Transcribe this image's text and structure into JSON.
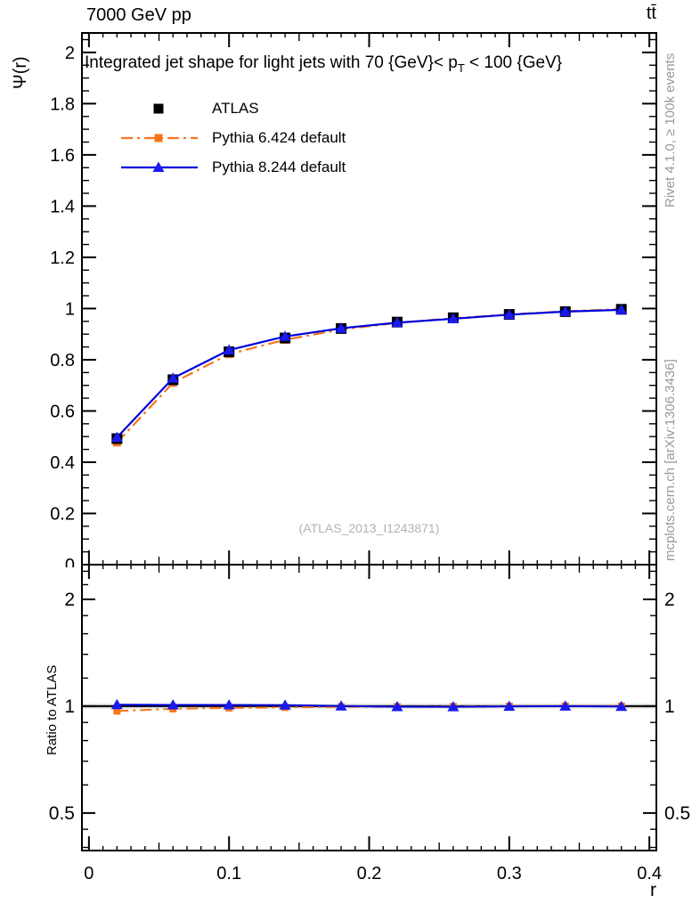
{
  "header": {
    "left": "7000 GeV pp",
    "right": "tt̄"
  },
  "side_notes": {
    "rivet": "Rivet 4.1.0, ≥ 100k events",
    "mcplots": "mcplots.cern.ch [arXiv:1306.3436]"
  },
  "watermark": "(ATLAS_2013_I1243871)",
  "legend": {
    "entries": [
      {
        "label": "ATLAS",
        "marker": "square",
        "color": "#000000",
        "line": "none"
      },
      {
        "label": "Pythia 6.424 default",
        "marker": "square",
        "color": "#f8751c",
        "line": "dashdot"
      },
      {
        "label": "Pythia 8.244 default",
        "marker": "triangle",
        "color": "#0000dd",
        "line": "solid"
      }
    ]
  },
  "colors": {
    "frame": "#000000",
    "atlas": "#000000",
    "pythia6": "#f8751c",
    "pythia8_line": "#0000dd",
    "pythia8_marker": "#1a1aee",
    "ratio_band": "#d9d9d9",
    "gray_text": "#999999",
    "watermark_text": "#b3b3b3"
  },
  "chart_data": {
    "type": "line",
    "title": "Integrated jet shape for light jets with 70 {GeV}< p_T < 100 {GeV}",
    "title_parts": [
      "Integrated jet shape for light jets with 70 {GeV}< p",
      "T",
      " < 100 {GeV}"
    ],
    "xlabel": "r",
    "ylabel": "Ψ(r)",
    "ratio_label": "Ratio to ATLAS",
    "legend_position": "top-left",
    "grid": false,
    "x": [
      0.02,
      0.06,
      0.1,
      0.14,
      0.18,
      0.22,
      0.26,
      0.3,
      0.34,
      0.38
    ],
    "series": [
      {
        "name": "ATLAS",
        "type": "markers",
        "marker": "square",
        "color": "#000000",
        "values": [
          0.492,
          0.722,
          0.831,
          0.885,
          0.922,
          0.947,
          0.964,
          0.977,
          0.988,
          0.997
        ]
      },
      {
        "name": "Pythia 6.424 default",
        "type": "line+markers",
        "marker": "square",
        "line": "dashdot",
        "color": "#f8751c",
        "values": [
          0.477,
          0.71,
          0.822,
          0.878,
          0.918,
          0.944,
          0.962,
          0.977,
          0.989,
          0.998
        ]
      },
      {
        "name": "Pythia 8.244 default",
        "type": "line+markers",
        "marker": "triangle",
        "line": "solid",
        "color": "#0000dd",
        "values": [
          0.497,
          0.728,
          0.838,
          0.891,
          0.923,
          0.945,
          0.96,
          0.976,
          0.988,
          0.995
        ]
      }
    ],
    "ratio_series": [
      {
        "name": "Pythia 6.424 default",
        "marker": "square",
        "line": "dashdot",
        "color": "#f8751c",
        "values": [
          0.969,
          0.983,
          0.989,
          0.992,
          0.996,
          0.997,
          0.998,
          1.0,
          1.001,
          1.001
        ]
      },
      {
        "name": "Pythia 8.244 default",
        "marker": "triangle",
        "line": "solid",
        "color": "#0000dd",
        "values": [
          1.01,
          1.008,
          1.008,
          1.007,
          1.001,
          0.997,
          0.996,
          0.999,
          1.0,
          0.998
        ]
      }
    ],
    "xlim": [
      -0.005,
      0.405
    ],
    "ylim_main": [
      0,
      2.076
    ],
    "ylim_ratio": [
      0.392,
      2.505
    ],
    "ratio_log": true,
    "ratio_reference": 1,
    "ratio_band": [
      0.985,
      1.015
    ],
    "x_major_ticks": [
      0,
      0.1,
      0.2,
      0.3,
      0.4
    ],
    "x_tick_labels": [
      "0",
      "0.1",
      "0.2",
      "0.3",
      "0.4"
    ],
    "y_ticks_main": [
      0,
      0.2,
      0.4,
      0.6,
      0.8,
      1,
      1.2,
      1.4,
      1.6,
      1.8,
      2
    ],
    "y_tick_labels_main": [
      "0",
      "0.2",
      "0.4",
      "0.6",
      "0.8",
      "1",
      "1.2",
      "1.4",
      "1.6",
      "1.8",
      "2"
    ],
    "y_ticks_ratio": [
      0.5,
      1,
      2
    ],
    "y_tick_labels_ratio": [
      "0.5",
      "1",
      "2"
    ],
    "y_minor_ticks_ratio": [
      0.4,
      0.45,
      0.6,
      0.7,
      0.8,
      0.9,
      1.2,
      1.4,
      1.6,
      1.8,
      2.2,
      2.4
    ]
  }
}
